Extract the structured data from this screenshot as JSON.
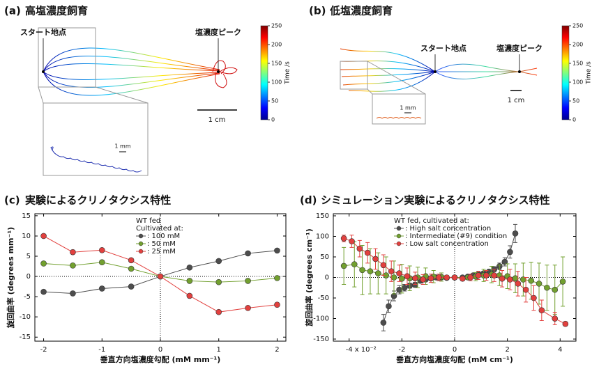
{
  "panel_a": {
    "label": "(a)",
    "title": "高塩濃度飼育",
    "start_label": "スタート地点",
    "peak_label": "塩濃度ピーク",
    "scale_inset": "1 mm",
    "scale_main": "1 cm",
    "colorbar": {
      "label": "Time /s",
      "lim": [
        0,
        250
      ],
      "ticks": [
        0,
        50,
        100,
        150,
        200,
        250
      ]
    }
  },
  "panel_b": {
    "label": "(b)",
    "title": "低塩濃度飼育",
    "start_label": "スタート地点",
    "peak_label": "塩濃度ピーク",
    "scale_inset": "1 mm",
    "scale_main": "1 cm",
    "colorbar": {
      "label": "Time /s",
      "lim": [
        0,
        250
      ],
      "ticks": [
        0,
        50,
        100,
        150,
        200,
        250
      ]
    }
  },
  "chart_data": [
    {
      "type": "line",
      "panel_label": "(c)",
      "title": "実験によるクリノタクシス特性",
      "x_label": "垂直方向塩濃度勾配 (mM mm⁻¹)",
      "y_label": "旋回曲率 (degrees mm⁻¹)",
      "xlim": [
        -2.15,
        2.15
      ],
      "xticks": [
        -2,
        -1,
        0,
        1,
        2
      ],
      "ylim": [
        -16,
        15.5
      ],
      "yticks": [
        -15,
        -10,
        -5,
        0,
        5,
        10,
        15
      ],
      "legend_title": [
        "WT fed",
        "Cultivated at:"
      ],
      "series": [
        {
          "name": ": 100 mM",
          "color": "#4d4d4d",
          "x": [
            -2,
            -1.5,
            -1,
            -0.5,
            0,
            0.5,
            1,
            1.5,
            2
          ],
          "values": [
            -3.8,
            -4.2,
            -3,
            -2.5,
            0,
            2.2,
            3.8,
            5.7,
            6.4
          ]
        },
        {
          "name": ": 50 mM",
          "color": "#72a02f",
          "x": [
            -2,
            -1.5,
            -1,
            -0.5,
            0,
            0.5,
            1,
            1.5,
            2
          ],
          "values": [
            3.2,
            2.7,
            3.5,
            1.9,
            0,
            -1.1,
            -1.4,
            -1.1,
            -0.4
          ]
        },
        {
          "name": ": 25 mM",
          "color": "#e2403e",
          "x": [
            -2,
            -1.5,
            -1,
            -0.5,
            0,
            0.5,
            1,
            1.5,
            2
          ],
          "values": [
            10,
            6,
            6.5,
            4,
            0,
            -4.8,
            -8.8,
            -7.8,
            -7
          ]
        }
      ]
    },
    {
      "type": "line",
      "panel_label": "(d)",
      "title": "シミュレーション実験によるクリノタクシス特性",
      "x_label": "垂直方向塩濃度勾配 (mM cm⁻¹)",
      "y_label": "旋回曲率 (degrees cm⁻¹)",
      "xlim": [
        -4.6,
        4.6
      ],
      "xticks": [
        -4,
        -2,
        0,
        2,
        4
      ],
      "x_multiplier": "x 10⁻²",
      "ylim": [
        -155,
        155
      ],
      "yticks": [
        -150,
        -100,
        -50,
        0,
        50,
        100,
        150
      ],
      "legend_title": [
        "WT fed, cultivated at:"
      ],
      "series": [
        {
          "name": ": High salt concentration",
          "color": "#4d4d4d",
          "x": [
            -2.7,
            -2.5,
            -2.3,
            -2.1,
            -1.9,
            -1.7,
            -1.5,
            -1.3,
            -1.1,
            -0.9,
            -0.7,
            -0.5,
            -0.3,
            0,
            0.3,
            0.5,
            0.7,
            0.9,
            1.1,
            1.3,
            1.5,
            1.7,
            1.9,
            2.1,
            2.3
          ],
          "values": [
            -110,
            -70,
            -45,
            -30,
            -25,
            -20,
            -18,
            -8,
            -5,
            -2,
            0,
            0,
            -1,
            0,
            0,
            2,
            5,
            8,
            10,
            14,
            20,
            27,
            38,
            62,
            107
          ],
          "errors": [
            20,
            15,
            12,
            10,
            8,
            6,
            6,
            5,
            5,
            4,
            3,
            3,
            3,
            2,
            2,
            3,
            3,
            4,
            5,
            5,
            6,
            8,
            10,
            15,
            22
          ]
        },
        {
          "name": ": Intermediate (#9) condition",
          "color": "#72a02f",
          "x": [
            -4.2,
            -3.8,
            -3.5,
            -3.2,
            -2.9,
            -2.6,
            -2.3,
            -2.0,
            -1.7,
            -1.4,
            -1.1,
            -0.8,
            -0.5,
            0,
            0.5,
            0.8,
            1.1,
            1.4,
            1.7,
            2.0,
            2.3,
            2.6,
            2.9,
            3.2,
            3.5,
            3.8,
            4.1
          ],
          "values": [
            28,
            32,
            18,
            15,
            10,
            5,
            0,
            -3,
            -2,
            0,
            3,
            2,
            1,
            0,
            0,
            2,
            5,
            7,
            5,
            3,
            -2,
            -5,
            -8,
            -15,
            -25,
            -30,
            -10
          ],
          "errors": [
            45,
            55,
            60,
            55,
            50,
            45,
            40,
            35,
            30,
            25,
            20,
            15,
            10,
            5,
            5,
            10,
            15,
            20,
            25,
            30,
            35,
            40,
            45,
            50,
            55,
            60,
            60
          ]
        },
        {
          "name": ": Low salt concentration",
          "color": "#e2403e",
          "x": [
            -4.2,
            -3.9,
            -3.6,
            -3.3,
            -3.0,
            -2.7,
            -2.4,
            -2.1,
            -1.8,
            -1.5,
            -1.2,
            -0.9,
            -0.6,
            -0.3,
            0,
            0.3,
            0.6,
            0.9,
            1.2,
            1.5,
            1.8,
            2.1,
            2.4,
            2.7,
            3.0,
            3.3,
            3.8,
            4.2
          ],
          "values": [
            95,
            88,
            70,
            60,
            45,
            30,
            15,
            10,
            3,
            -2,
            -5,
            -2,
            0,
            0,
            0,
            -3,
            0,
            5,
            5,
            5,
            -3,
            -5,
            -15,
            -30,
            -50,
            -80,
            -100,
            -113
          ],
          "errors": [
            8,
            15,
            20,
            25,
            25,
            25,
            25,
            20,
            20,
            15,
            12,
            10,
            8,
            5,
            3,
            5,
            8,
            10,
            12,
            15,
            20,
            25,
            30,
            30,
            30,
            25,
            15,
            5
          ]
        }
      ]
    }
  ]
}
